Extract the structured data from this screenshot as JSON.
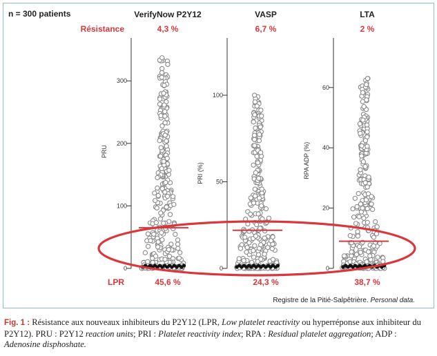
{
  "accent_color": "#d9373b",
  "header": {
    "patients": "n = 300 patients"
  },
  "rows": {
    "resistance_label": "Résistance",
    "lpr_label": "LPR"
  },
  "credit": {
    "source": "Registre de la Pitié-Salpêtrière.",
    "note": "Personal data."
  },
  "caption": {
    "lead": "Fig. 1 :",
    "part1": "Résistance aux nouveaux inhibiteurs du P2Y12 (LPR,",
    "lpr_en": "Low platelet reactivity",
    "part2": "ou hyperréponse aux inhibiteur du P2Y12). PRU : P2Y12",
    "pru_en": "reaction units",
    "part3": "; PRI :",
    "pri_en": "Platelet reactivity index",
    "part4": "; RPA :",
    "rpa_en": "Residual platelet aggregation",
    "part5": "; ADP :",
    "adp_en": "Adenosine disphoshate."
  },
  "chart_data": [
    {
      "type": "scatter",
      "title": "VerifyNow P2Y12",
      "ylabel": "PRU",
      "ylim": [
        0,
        340
      ],
      "yticks": [
        0,
        100,
        200,
        300
      ],
      "resistance": "4,3 %",
      "lpr": "45,6 %",
      "threshold": 65,
      "max": 337,
      "n": 300
    },
    {
      "type": "scatter",
      "title": "VASP",
      "ylabel": "PRI (%)",
      "ylim": [
        0,
        100
      ],
      "yticks": [
        0,
        50,
        100
      ],
      "resistance": "6,7 %",
      "lpr": "24,3 %",
      "threshold": 22,
      "max": 100,
      "n": 300
    },
    {
      "type": "scatter",
      "title": "LTA",
      "ylabel": "RPA ADP (%)",
      "ylim": [
        0,
        65
      ],
      "yticks": [
        0,
        20,
        40,
        60
      ],
      "resistance": "2 %",
      "lpr": "38,7 %",
      "threshold": 9,
      "max": 63,
      "n": 300
    }
  ]
}
